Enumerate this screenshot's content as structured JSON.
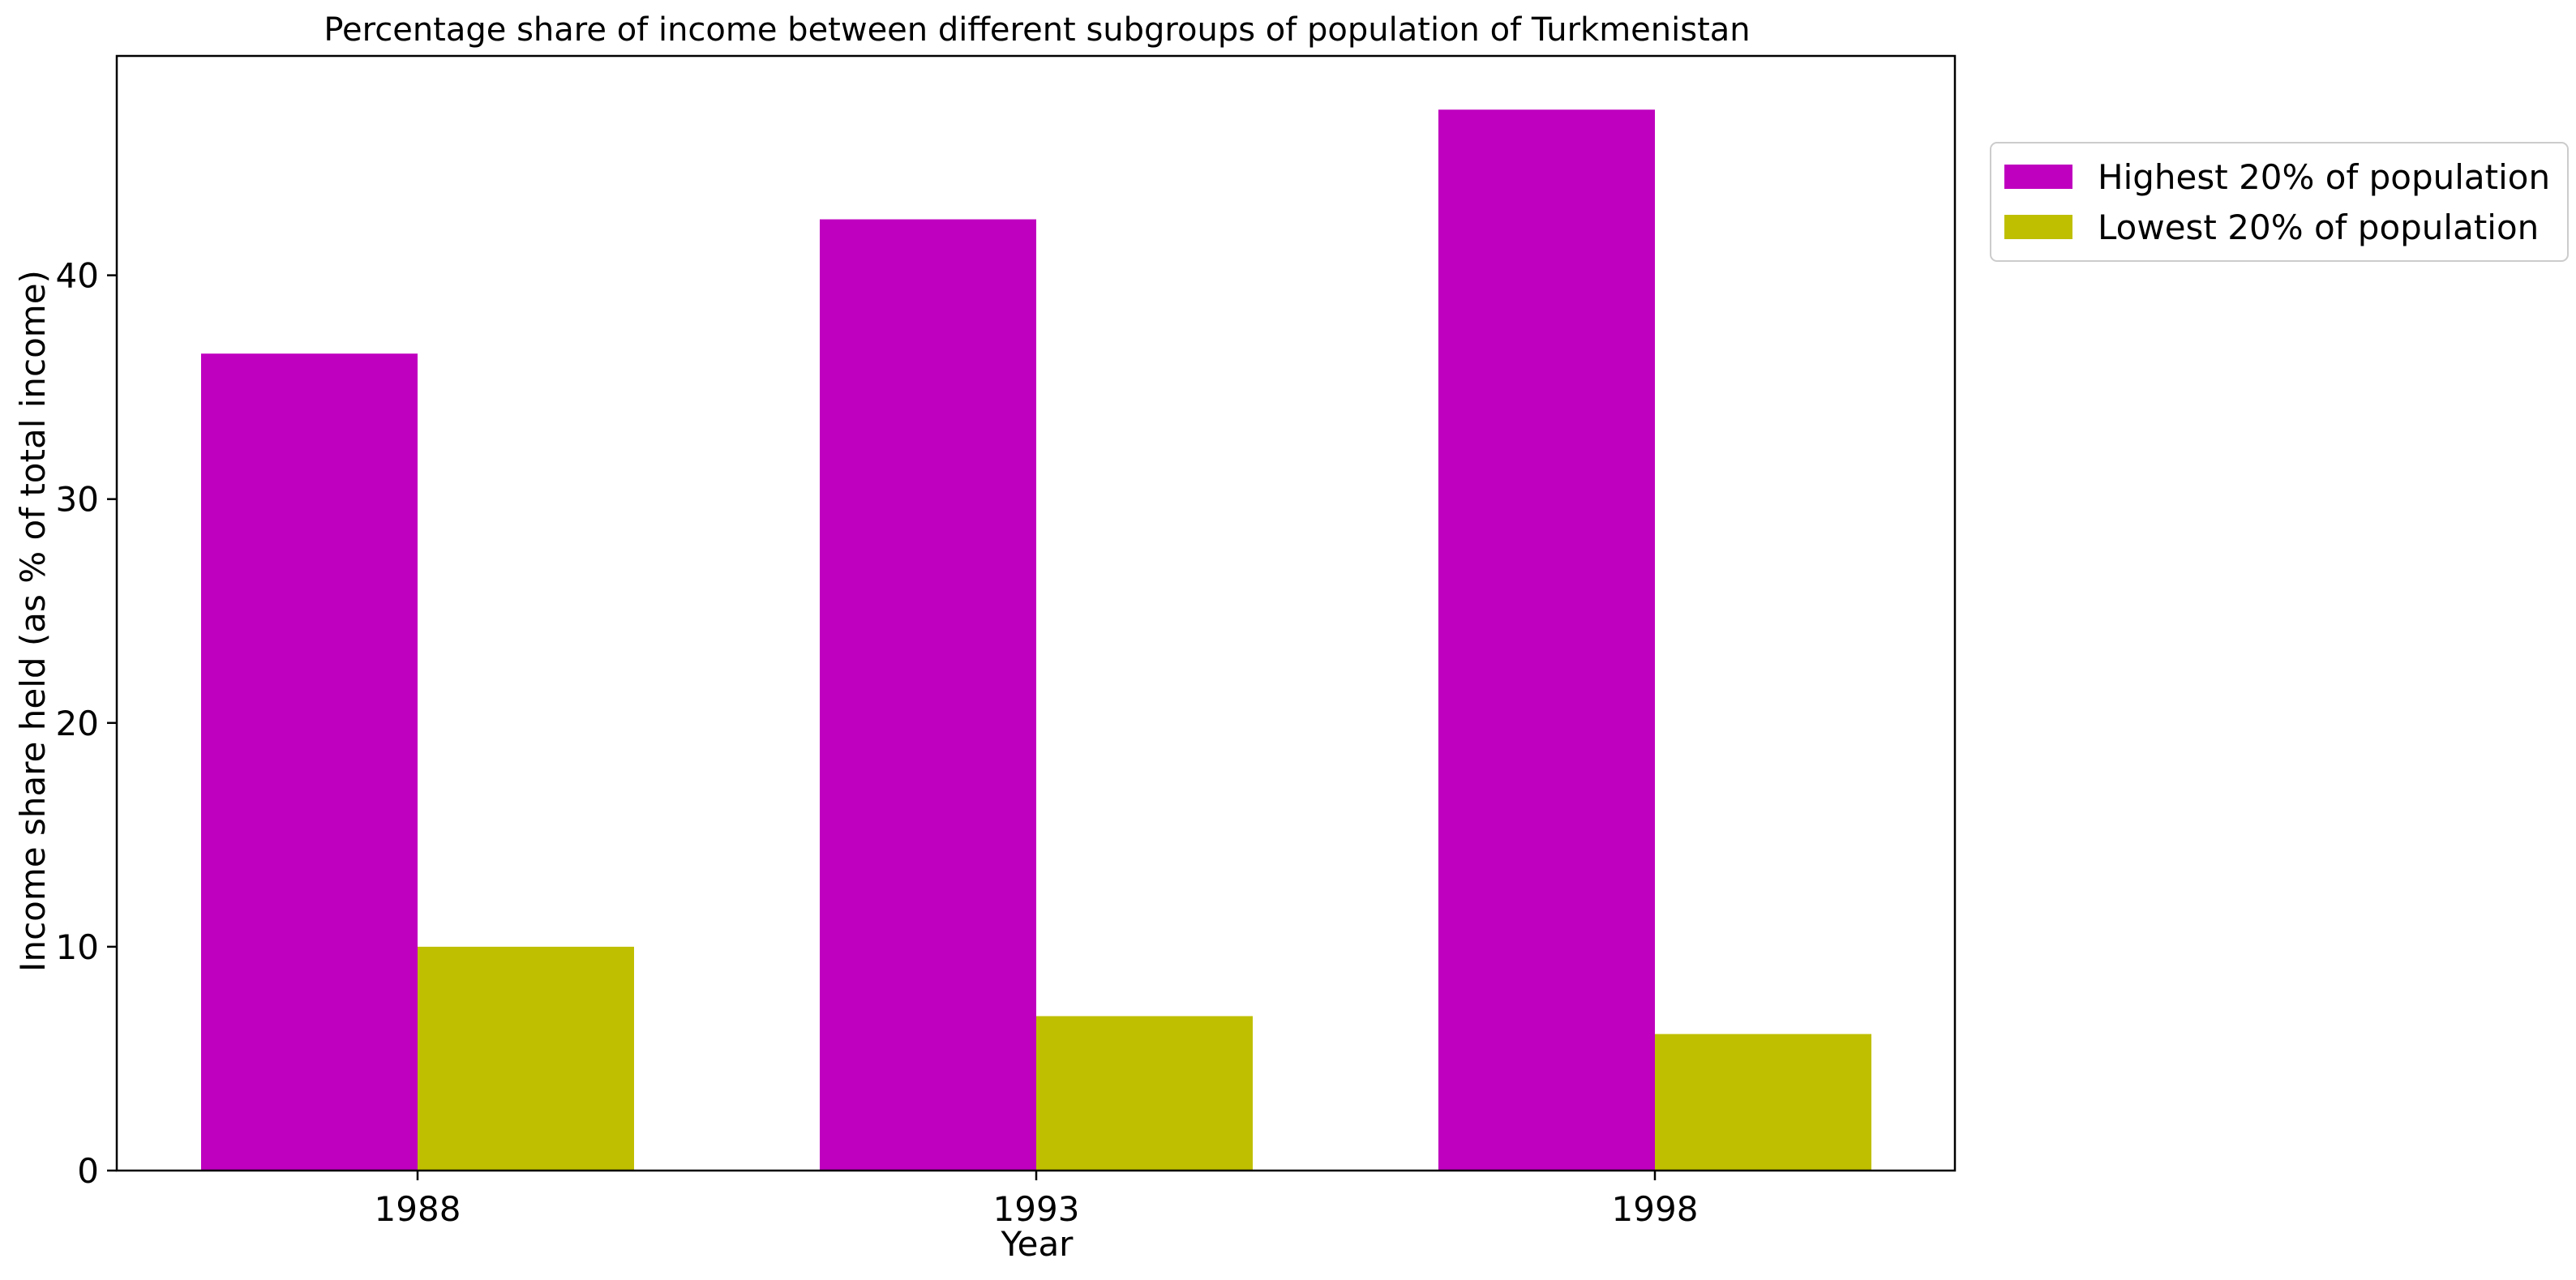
{
  "chart_data": {
    "type": "bar",
    "title": "Percentage share of income between different subgroups of population of Turkmenistan",
    "xlabel": "Year",
    "ylabel": "Income share held (as % of total income)",
    "categories": [
      "1988",
      "1993",
      "1998"
    ],
    "series": [
      {
        "name": "Highest 20% of population",
        "color": "#bf00bf",
        "values": [
          36.5,
          42.5,
          47.4
        ]
      },
      {
        "name": "Lowest 20% of population",
        "color": "#bfbf00",
        "values": [
          10.0,
          6.9,
          6.1
        ]
      }
    ],
    "ylim": [
      0,
      49.8
    ],
    "yticks": [
      "0",
      "10",
      "20",
      "30",
      "40"
    ],
    "grid": false,
    "legend_position": "outside-top-right"
  }
}
